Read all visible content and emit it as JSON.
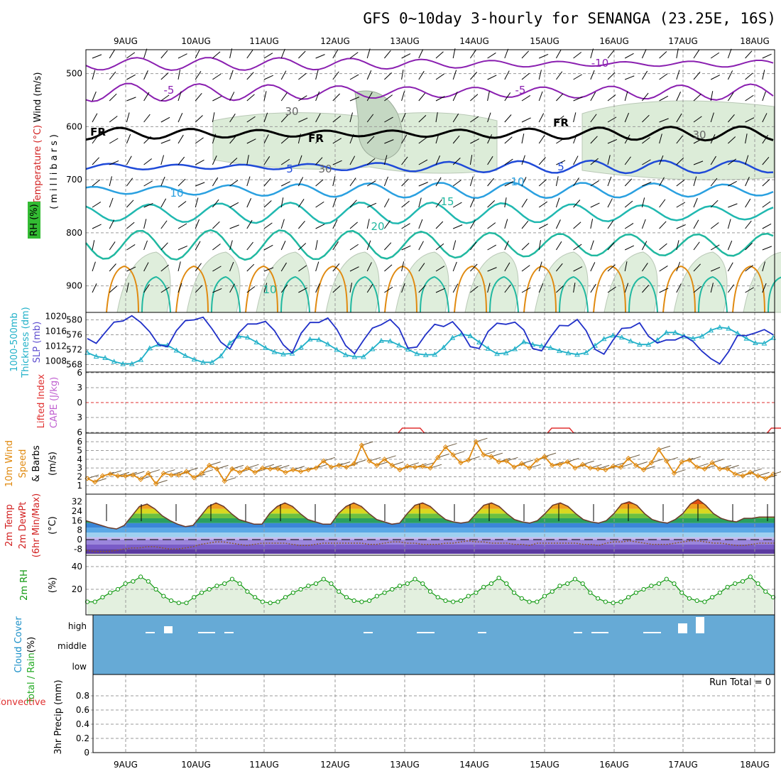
{
  "title": "GFS 0~10day 3-hourly for SENANGA (23.25E, 16S)",
  "dates": [
    "9AUG",
    "10AUG",
    "11AUG",
    "12AUG",
    "13AUG",
    "14AUG",
    "15AUG",
    "16AUG",
    "17AUG",
    "18AUG"
  ],
  "panel_labels": {
    "upper_wind": "Wind (m/s)",
    "upper_temp": "Temperature (°C)",
    "upper_rh": "RH (%)",
    "upper_unit": "(millibars)",
    "thick": "1000-500mb",
    "thick2": "Thickness (dm)",
    "slp": "SLP (mb)",
    "li": "Lifted Index",
    "cape": "CAPE (J/kg)",
    "wind10": "10m Wind",
    "wind10b": "Speed",
    "wind10c": "& Barbs",
    "wind10unit": "(m/s)",
    "t2": "2m Temp",
    "td2": "2m DewPt",
    "t2c": "(6hr Min/Max)",
    "t2unit": "(°C)",
    "rh2": "2m RH",
    "rh2unit": "(%)",
    "cloud": "Cloud Cover",
    "cloudunit": "(%)",
    "precip1": "Total / Rain",
    "precip2": "Convective",
    "precip3": "3hr Precip (mm)"
  },
  "run_total": "Run Total = 0",
  "cloud_levels": [
    "high",
    "middle",
    "low"
  ],
  "colors": {
    "frame": "#000000",
    "wind_label": "#000000",
    "temp_label": "#d22020",
    "rh_label": "#33aa33",
    "thick_color": "#20b0c8",
    "slp_color": "#2030c8",
    "li_color": "#e03030",
    "cape_color": "#c060d0",
    "wind10_color": "#e08a10",
    "rh2_color": "#119911",
    "cloud_color": "#1b90c8",
    "cloud_bg": "#66aad6",
    "precip_total": "#22aa22",
    "precip_conv": "#e03030"
  },
  "chart_data": [
    {
      "type": "line",
      "name": "upper-air",
      "yaxis_ticks": [
        500,
        600,
        700,
        800,
        900
      ],
      "ylim": [
        455,
        950
      ],
      "isotherm_labels": [
        "-10",
        "-5",
        "-5",
        "FR",
        "FR",
        "FR",
        "5",
        "5",
        "10",
        "10",
        "15",
        "20",
        "30",
        "30",
        "30",
        "10"
      ]
    },
    {
      "type": "line",
      "name": "thickness-slp",
      "left_ticks": [
        568,
        572,
        576,
        580
      ],
      "right_ticks": [
        1008,
        1012,
        1016,
        1020
      ],
      "thickness_dm": [
        571.2,
        570.2,
        569.8,
        568.8,
        568.2,
        568.2,
        569.3,
        572.4,
        573.4,
        573.2,
        571.8,
        570.4,
        569.4,
        568.6,
        568.6,
        570.3,
        573.8,
        575.6,
        575.3,
        574.0,
        572.5,
        571.4,
        570.8,
        571.0,
        572.6,
        574.8,
        574.7,
        573.5,
        572.0,
        570.6,
        570.1,
        570.1,
        572.2,
        574.4,
        574.3,
        573.2,
        572.1,
        570.9,
        570.6,
        570.7,
        572.6,
        575.2,
        576.2,
        575.7,
        574.0,
        572.3,
        570.9,
        571.1,
        572.2,
        574.1,
        573.4,
        573.0,
        572.5,
        571.7,
        571.1,
        570.7,
        571.2,
        573.1,
        574.9,
        575.8,
        575.3,
        574.3,
        573.4,
        573.4,
        574.6,
        576.6,
        576.6,
        575.6,
        575.0,
        575.6,
        577.2,
        578.0,
        577.7,
        576.4,
        575.0,
        573.8,
        573.7,
        575.2
      ],
      "slp_mb": [
        1014.0,
        1012.7,
        1015.6,
        1018.4,
        1018.7,
        1020.1,
        1018.3,
        1015.8,
        1012.3,
        1011.8,
        1016.1,
        1018.8,
        1019.0,
        1019.7,
        1016.6,
        1013.0,
        1011.2,
        1015.5,
        1017.9,
        1017.9,
        1018.6,
        1016.1,
        1012.3,
        1010.1,
        1015.4,
        1018.3,
        1018.3,
        1019.5,
        1016.5,
        1012.1,
        1009.9,
        1013.5,
        1016.8,
        1017.7,
        1019.1,
        1016.7,
        1011.4,
        1011.7,
        1015.1,
        1017.8,
        1017.2,
        1018.5,
        1015.8,
        1011.8,
        1011.3,
        1015.9,
        1018.1,
        1017.8,
        1018.4,
        1016.3,
        1011.3,
        1010.7,
        1014.4,
        1017.5,
        1017.4,
        1019.1,
        1016.1,
        1011.1,
        1009.8,
        1013.5,
        1016.7,
        1016.9,
        1018.2,
        1014.6,
        1012.8,
        1013.6,
        1013.6,
        1014.7,
        1013.2,
        1010.6,
        1008.6,
        1007.2,
        1010.5,
        1014.8,
        1014.8,
        1015.5,
        1016.4,
        1015.0
      ]
    },
    {
      "type": "line",
      "name": "lifted-index-cape",
      "yticks": [
        6,
        3,
        0,
        -3,
        -6
      ],
      "li_segments": [
        [
          35,
          38
        ],
        [
          52,
          55
        ],
        [
          77,
          80
        ],
        [
          89,
          90
        ]
      ]
    },
    {
      "type": "line",
      "name": "wind10m",
      "yticks": [
        1,
        2,
        3,
        4,
        5,
        6
      ],
      "speed_ms": [
        1.8,
        1.4,
        2.1,
        2.3,
        2.1,
        2.1,
        2.2,
        1.7,
        2.4,
        1.2,
        2.4,
        2.2,
        2.2,
        2.6,
        1.9,
        2.4,
        3.3,
        2.9,
        1.5,
        2.9,
        2.5,
        3.0,
        2.5,
        3.0,
        2.9,
        2.9,
        2.5,
        2.8,
        2.6,
        2.8,
        3.0,
        3.8,
        3.1,
        3.3,
        3.1,
        3.5,
        5.6,
        3.8,
        3.3,
        4.0,
        3.3,
        2.8,
        3.2,
        3.1,
        3.2,
        3.0,
        4.2,
        5.4,
        4.5,
        3.6,
        3.9,
        6.0,
        4.5,
        4.3,
        3.7,
        3.8,
        3.1,
        3.5,
        3.0,
        3.9,
        4.3,
        3.3,
        3.4,
        3.7,
        3.0,
        3.4,
        3.0,
        2.9,
        2.8,
        3.2,
        3.1,
        4.1,
        3.3,
        2.8,
        3.6,
        5.1,
        3.8,
        2.4,
        3.7,
        3.9,
        3.1,
        2.9,
        3.6,
        2.9,
        2.9,
        2.3,
        2.1,
        2.5,
        2.1,
        1.8,
        2.3
      ]
    },
    {
      "type": "area",
      "name": "temp2m",
      "yticks": [
        32,
        24,
        16,
        8,
        0,
        -8
      ],
      "temp_c": [
        16,
        14,
        12,
        10,
        9,
        12,
        20,
        28,
        30,
        26,
        20,
        16,
        13,
        11,
        12,
        20,
        28,
        31,
        28,
        22,
        17,
        15,
        13,
        13,
        22,
        28,
        31,
        28,
        22,
        17,
        15,
        13,
        13,
        22,
        28,
        31,
        28,
        22,
        17,
        15,
        13,
        14,
        22,
        29,
        31,
        28,
        22,
        17,
        15,
        14,
        15,
        22,
        29,
        31,
        28,
        22,
        17,
        15,
        14,
        16,
        22,
        29,
        31,
        28,
        22,
        17,
        15,
        14,
        16,
        22,
        30,
        32,
        29,
        22,
        17,
        15,
        14,
        17,
        22,
        30,
        34,
        29,
        22,
        18,
        16,
        15,
        18,
        18,
        19,
        19,
        19
      ],
      "dewpt_c": [
        -9,
        -10,
        -10,
        -10,
        -9,
        -8,
        -7,
        -7,
        -6,
        -6,
        -7,
        -8,
        -8,
        -7,
        -6,
        -4,
        -3,
        -2,
        -2,
        -3,
        -4,
        -5,
        -4,
        -3,
        -3,
        -3,
        -3,
        -4,
        -5,
        -5,
        -4,
        -3,
        -3,
        -3,
        -3,
        -3,
        -3,
        -4,
        -4,
        -3,
        -2,
        -2,
        -3,
        -3,
        -4,
        -4,
        -4,
        -3,
        -3,
        -2,
        -1,
        -2,
        -2,
        -3,
        -3,
        -3,
        -4,
        -4,
        -5,
        -3,
        -3,
        -3,
        -3,
        -3,
        -3,
        -4,
        -4,
        -5,
        -3,
        -2,
        -2,
        -1,
        -2,
        -3,
        -4,
        -4,
        -4,
        -3,
        -2,
        -1,
        -1,
        -2,
        -3,
        -3,
        -4,
        -5,
        -5,
        -4,
        -3,
        -3,
        -3
      ]
    },
    {
      "type": "area",
      "name": "rh2m",
      "yticks": [
        20,
        40
      ],
      "rh_pct": [
        9,
        9,
        13,
        17,
        20,
        25,
        27,
        31,
        27,
        20,
        14,
        10,
        8,
        8,
        13,
        17,
        20,
        23,
        25,
        29,
        25,
        18,
        13,
        9,
        8,
        9,
        13,
        17,
        20,
        23,
        25,
        29,
        25,
        18,
        13,
        10,
        9,
        10,
        14,
        17,
        20,
        23,
        25,
        29,
        25,
        18,
        13,
        10,
        9,
        10,
        14,
        17,
        22,
        25,
        30,
        25,
        17,
        12,
        9,
        9,
        14,
        18,
        23,
        25,
        29,
        25,
        17,
        12,
        9,
        8,
        9,
        13,
        17,
        20,
        23,
        25,
        29,
        25,
        17,
        12,
        10,
        9,
        13,
        17,
        22,
        25,
        27,
        31,
        25,
        18,
        13
      ]
    }
  ]
}
